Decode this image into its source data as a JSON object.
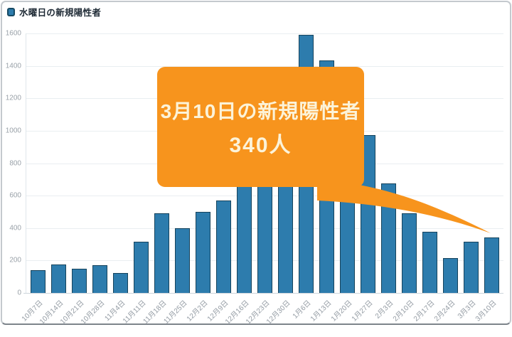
{
  "frame": {
    "background": "#ffffff",
    "border_color": "#c4c9ce"
  },
  "legend": {
    "label": "水曜日の新規陽性者",
    "swatch_color": "#2d7cad",
    "swatch_border_color": "#16435c"
  },
  "chart_data": {
    "type": "bar",
    "title": "",
    "series_name": "水曜日の新規陽性者",
    "categories": [
      "10月7日",
      "10月14日",
      "10月21日",
      "10月28日",
      "11月4日",
      "11月11日",
      "11月18日",
      "11月25日",
      "12月2日",
      "12月9日",
      "12月16日",
      "12月23日",
      "12月30日",
      "1月6日",
      "1月13日",
      "1月20日",
      "1月27日",
      "2月3日",
      "2月10日",
      "2月17日",
      "2月24日",
      "3月3日",
      "3月10日"
    ],
    "values": [
      142,
      177,
      150,
      171,
      122,
      317,
      493,
      401,
      500,
      572,
      678,
      748,
      944,
      1591,
      1433,
      1274,
      973,
      676,
      491,
      378,
      213,
      316,
      340
    ],
    "xlabel": "",
    "ylabel": "",
    "ylim": [
      0,
      1600
    ],
    "yticks": [
      0,
      200,
      400,
      600,
      800,
      1000,
      1200,
      1400,
      1600
    ],
    "grid": "horizontal",
    "legend_position": "top-left",
    "bar_fill": "#2d7cad",
    "bar_border": "#16435c"
  },
  "callout": {
    "line1": "3月10日の新規陽性者",
    "line2": "340人",
    "target_category": "3月10日",
    "background": "#f7941d",
    "text_color": "#fcf3d9"
  }
}
